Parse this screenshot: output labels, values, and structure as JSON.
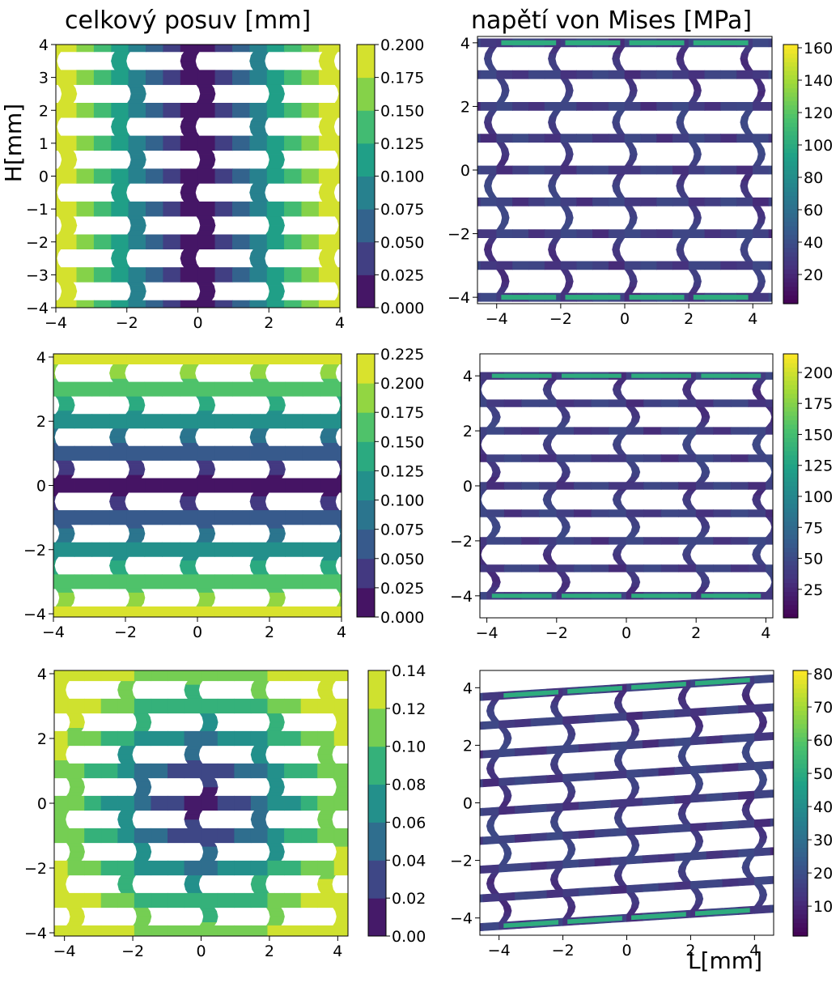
{
  "titles": {
    "left": "celkový posuv [mm]",
    "right": "napětí von Mises [MPa]"
  },
  "axis_labels": {
    "y": "H[mm]",
    "x": "L[mm]"
  },
  "colors": {
    "viridis": [
      "#440154",
      "#46327e",
      "#365c8d",
      "#277f8e",
      "#1fa187",
      "#4ac16d",
      "#a0da39",
      "#fde725"
    ]
  },
  "chart_data": [
    {
      "type": "heatmap",
      "title": "celkový posuv [mm]",
      "ylabel": "H[mm]",
      "xlim": [
        -4,
        4
      ],
      "ylim": [
        -4,
        4
      ],
      "xticks": [
        "−4",
        "−2",
        "0",
        "2",
        "4"
      ],
      "yticks": [
        "4",
        "3",
        "2",
        "1",
        "0",
        "−1",
        "−2",
        "−3",
        "−4"
      ],
      "colorbar": {
        "min": 0.0,
        "max": 0.2,
        "levels": 8,
        "ticks": [
          "0.200",
          "0.175",
          "0.150",
          "0.125",
          "0.100",
          "0.075",
          "0.050",
          "0.025",
          "0.000"
        ]
      }
    },
    {
      "type": "heatmap",
      "title": "napětí von Mises [MPa]",
      "xlim": [
        -4.6,
        4.6
      ],
      "ylim": [
        -4.2,
        4.2
      ],
      "xticks": [
        "−4",
        "−2",
        "0",
        "2",
        "4"
      ],
      "yticks": [
        "4",
        "2",
        "0",
        "−2",
        "−4"
      ],
      "colorbar": {
        "min": 2,
        "max": 162,
        "ticks": [
          "160",
          "140",
          "120",
          "100",
          "80",
          "60",
          "40",
          "20"
        ]
      }
    },
    {
      "type": "heatmap",
      "xlim": [
        -4,
        4
      ],
      "ylim": [
        -4.1,
        4.1
      ],
      "xticks": [
        "−4",
        "−2",
        "0",
        "2",
        "4"
      ],
      "yticks": [
        "4",
        "2",
        "0",
        "−2",
        "−4"
      ],
      "colorbar": {
        "min": 0.0,
        "max": 0.225,
        "levels": 9,
        "ticks": [
          "0.225",
          "0.200",
          "0.175",
          "0.150",
          "0.125",
          "0.100",
          "0.075",
          "0.050",
          "0.025",
          "0.000"
        ]
      }
    },
    {
      "type": "heatmap",
      "xlim": [
        -4.2,
        4.2
      ],
      "ylim": [
        -4.8,
        4.8
      ],
      "xticks": [
        "−4",
        "−2",
        "0",
        "2",
        "4"
      ],
      "yticks": [
        "4",
        "2",
        "0",
        "−2",
        "−4"
      ],
      "colorbar": {
        "min": 2,
        "max": 215,
        "ticks": [
          "200",
          "175",
          "150",
          "125",
          "100",
          "75",
          "50",
          "25"
        ]
      }
    },
    {
      "type": "heatmap",
      "xlim": [
        -4.3,
        4.3
      ],
      "ylim": [
        -4.1,
        4.1
      ],
      "xticks": [
        "−4",
        "−2",
        "0",
        "2",
        "4"
      ],
      "yticks": [
        "4",
        "2",
        "0",
        "−2",
        "−4"
      ],
      "colorbar": {
        "min": 0.0,
        "max": 0.14,
        "levels": 7,
        "ticks": [
          "0.14",
          "0.12",
          "0.10",
          "0.08",
          "0.06",
          "0.04",
          "0.02",
          "0.00"
        ]
      }
    },
    {
      "type": "heatmap",
      "xlabel": "L[mm]",
      "xlim": [
        -4.6,
        4.6
      ],
      "ylim": [
        -4.6,
        4.6
      ],
      "xticks": [
        "−4",
        "−2",
        "0",
        "2",
        "4"
      ],
      "yticks": [
        "4",
        "2",
        "0",
        "−2",
        "−4"
      ],
      "colorbar": {
        "min": 1,
        "max": 81,
        "ticks": [
          "80",
          "70",
          "60",
          "50",
          "40",
          "30",
          "20",
          "10"
        ]
      }
    }
  ]
}
